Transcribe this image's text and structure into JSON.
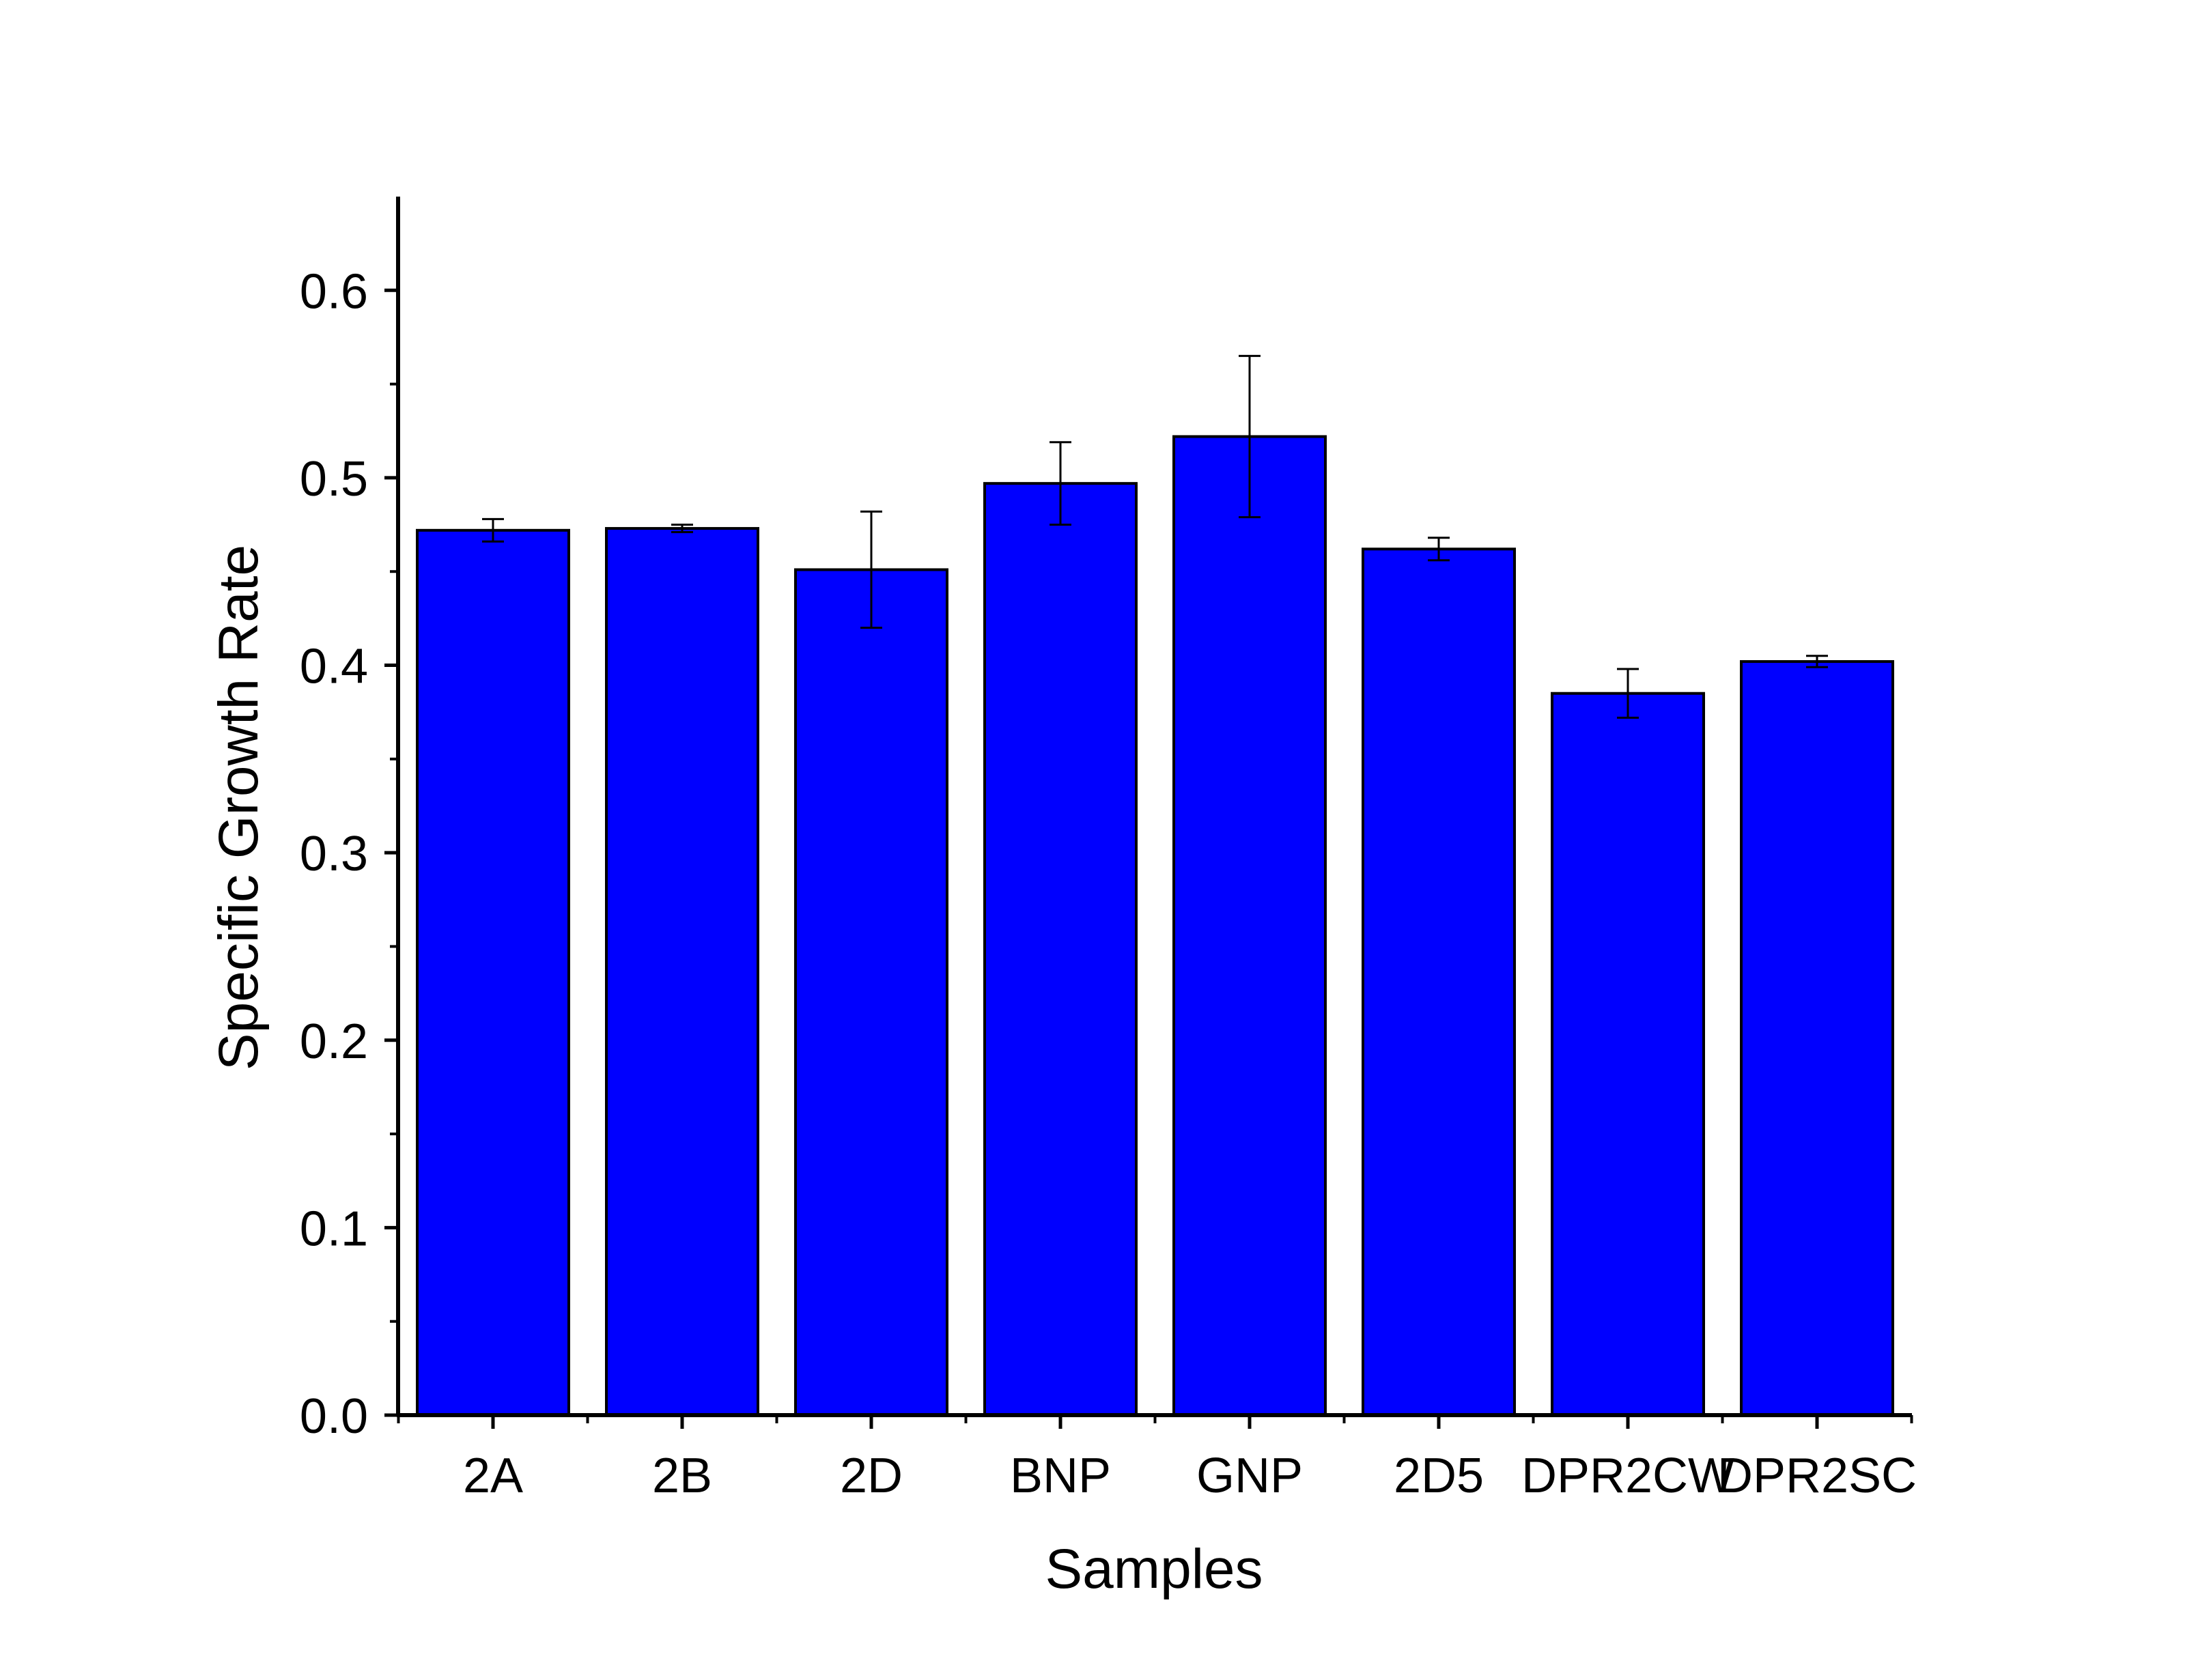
{
  "chart_data": {
    "type": "bar",
    "title": "",
    "xlabel": "Samples",
    "ylabel": "Specific Growth Rate",
    "categories": [
      "2A",
      "2B",
      "2D",
      "BNP",
      "GNP",
      "2D5",
      "DPR2CW",
      "DPR2SC"
    ],
    "series": [
      {
        "values": [
          0.472,
          0.473,
          0.451,
          0.497,
          0.522,
          0.462,
          0.385,
          0.402
        ],
        "errors": [
          0.006,
          0.002,
          0.031,
          0.022,
          0.043,
          0.006,
          0.013,
          0.003
        ]
      }
    ],
    "ylim": [
      0,
      0.65
    ],
    "yticks": [
      0.0,
      0.1,
      0.2,
      0.3,
      0.4,
      0.5,
      0.6
    ],
    "ytick_labels": [
      "0.0",
      "0.1",
      "0.2",
      "0.3",
      "0.4",
      "0.5",
      "0.6"
    ],
    "grid": false,
    "legend": "none",
    "colors": {
      "bar": "#0000ff",
      "edge": "#000000",
      "axis": "#000000"
    }
  }
}
